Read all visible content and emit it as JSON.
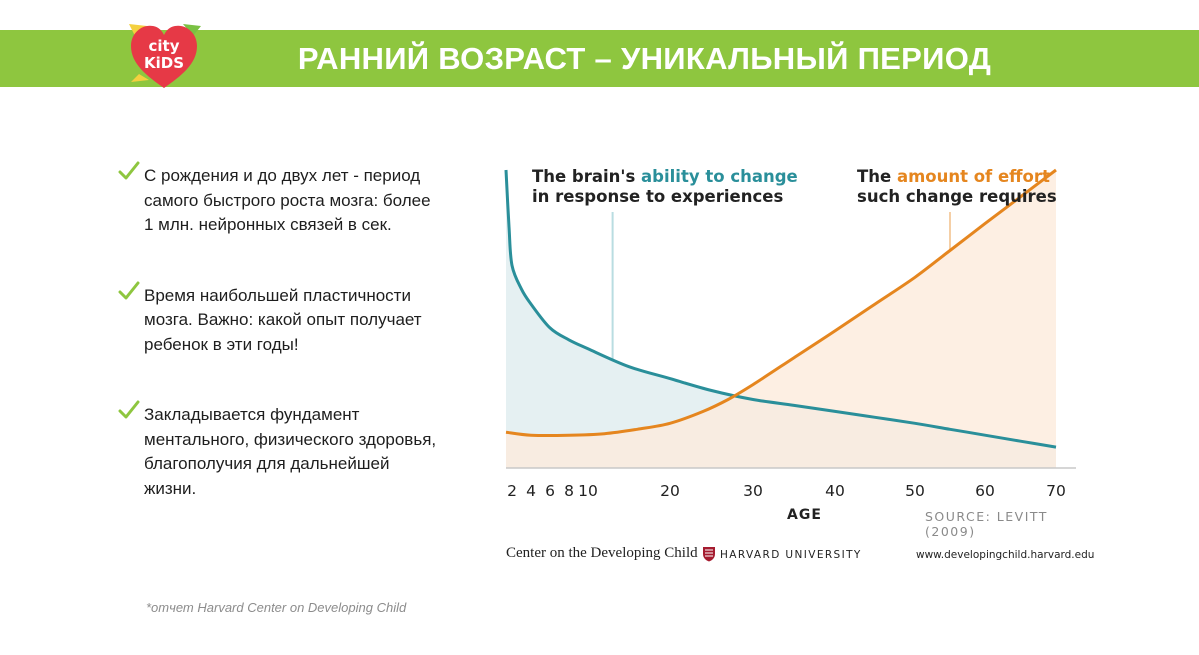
{
  "header": {
    "title": "РАННИЙ ВОЗРАСТ – УНИКАЛЬНЫЙ ПЕРИОД",
    "band_color": "#8ec63f",
    "logo": {
      "line1": "city",
      "line2": "KiDS",
      "color": "#e63946"
    }
  },
  "bullets": [
    {
      "text": "С рождения и до двух лет - период самого быстрого роста мозга: более 1 млн. нейронных связей в сек."
    },
    {
      "text": "Время наибольшей пластичности мозга. Важно: какой опыт получает ребенок в эти годы!"
    },
    {
      "text": "Закладывается фундамент ментального, физического здоровья, благополучия для дальнейшей жизни."
    }
  ],
  "footnote": "*отчет Harvard Center on Developing Child",
  "chart_data": {
    "type": "area",
    "xlabel": "AGE",
    "x_ticks": [
      2,
      4,
      6,
      8,
      10,
      20,
      30,
      40,
      50,
      60,
      70
    ],
    "x_tick_labels": [
      "2",
      "4",
      "6",
      "8",
      "10",
      "20",
      "30",
      "40",
      "50",
      "60",
      "70"
    ],
    "xlim": [
      0,
      70
    ],
    "ylim": [
      0,
      100
    ],
    "grid": false,
    "series": [
      {
        "color": "#2a8f9a",
        "fill": "#e5f0f2",
        "x": [
          0,
          1,
          2,
          3,
          4,
          6,
          8,
          10,
          15,
          20,
          25,
          30,
          35,
          40,
          45,
          50,
          55,
          60,
          65,
          70
        ],
        "values": [
          100,
          81,
          68,
          60,
          55,
          47,
          43,
          40,
          34,
          30,
          26,
          23,
          21,
          19,
          17,
          15,
          13,
          11,
          9,
          7
        ]
      },
      {
        "color": "#e5861f",
        "fill": "#fcebdc",
        "x": [
          0,
          4,
          8,
          12,
          16,
          20,
          24,
          27,
          30,
          35,
          40,
          45,
          50,
          55,
          60,
          65,
          70
        ],
        "values": [
          12,
          11,
          11,
          11.5,
          13,
          15,
          19,
          23,
          28,
          37,
          46,
          55,
          64,
          73,
          82,
          91,
          100
        ]
      }
    ],
    "annotations": [
      {
        "before": "The brain's ",
        "highlight": "ability to change",
        "line2": "in response to experiences",
        "x": 13
      },
      {
        "before": "The ",
        "highlight": "amount of effort",
        "line2": "such change requires",
        "x": 55
      }
    ],
    "source": "SOURCE: LEVITT (2009)",
    "credit": "Center on the Developing Child",
    "institution": "HARVARD UNIVERSITY",
    "url": "www.developingchild.harvard.edu"
  }
}
